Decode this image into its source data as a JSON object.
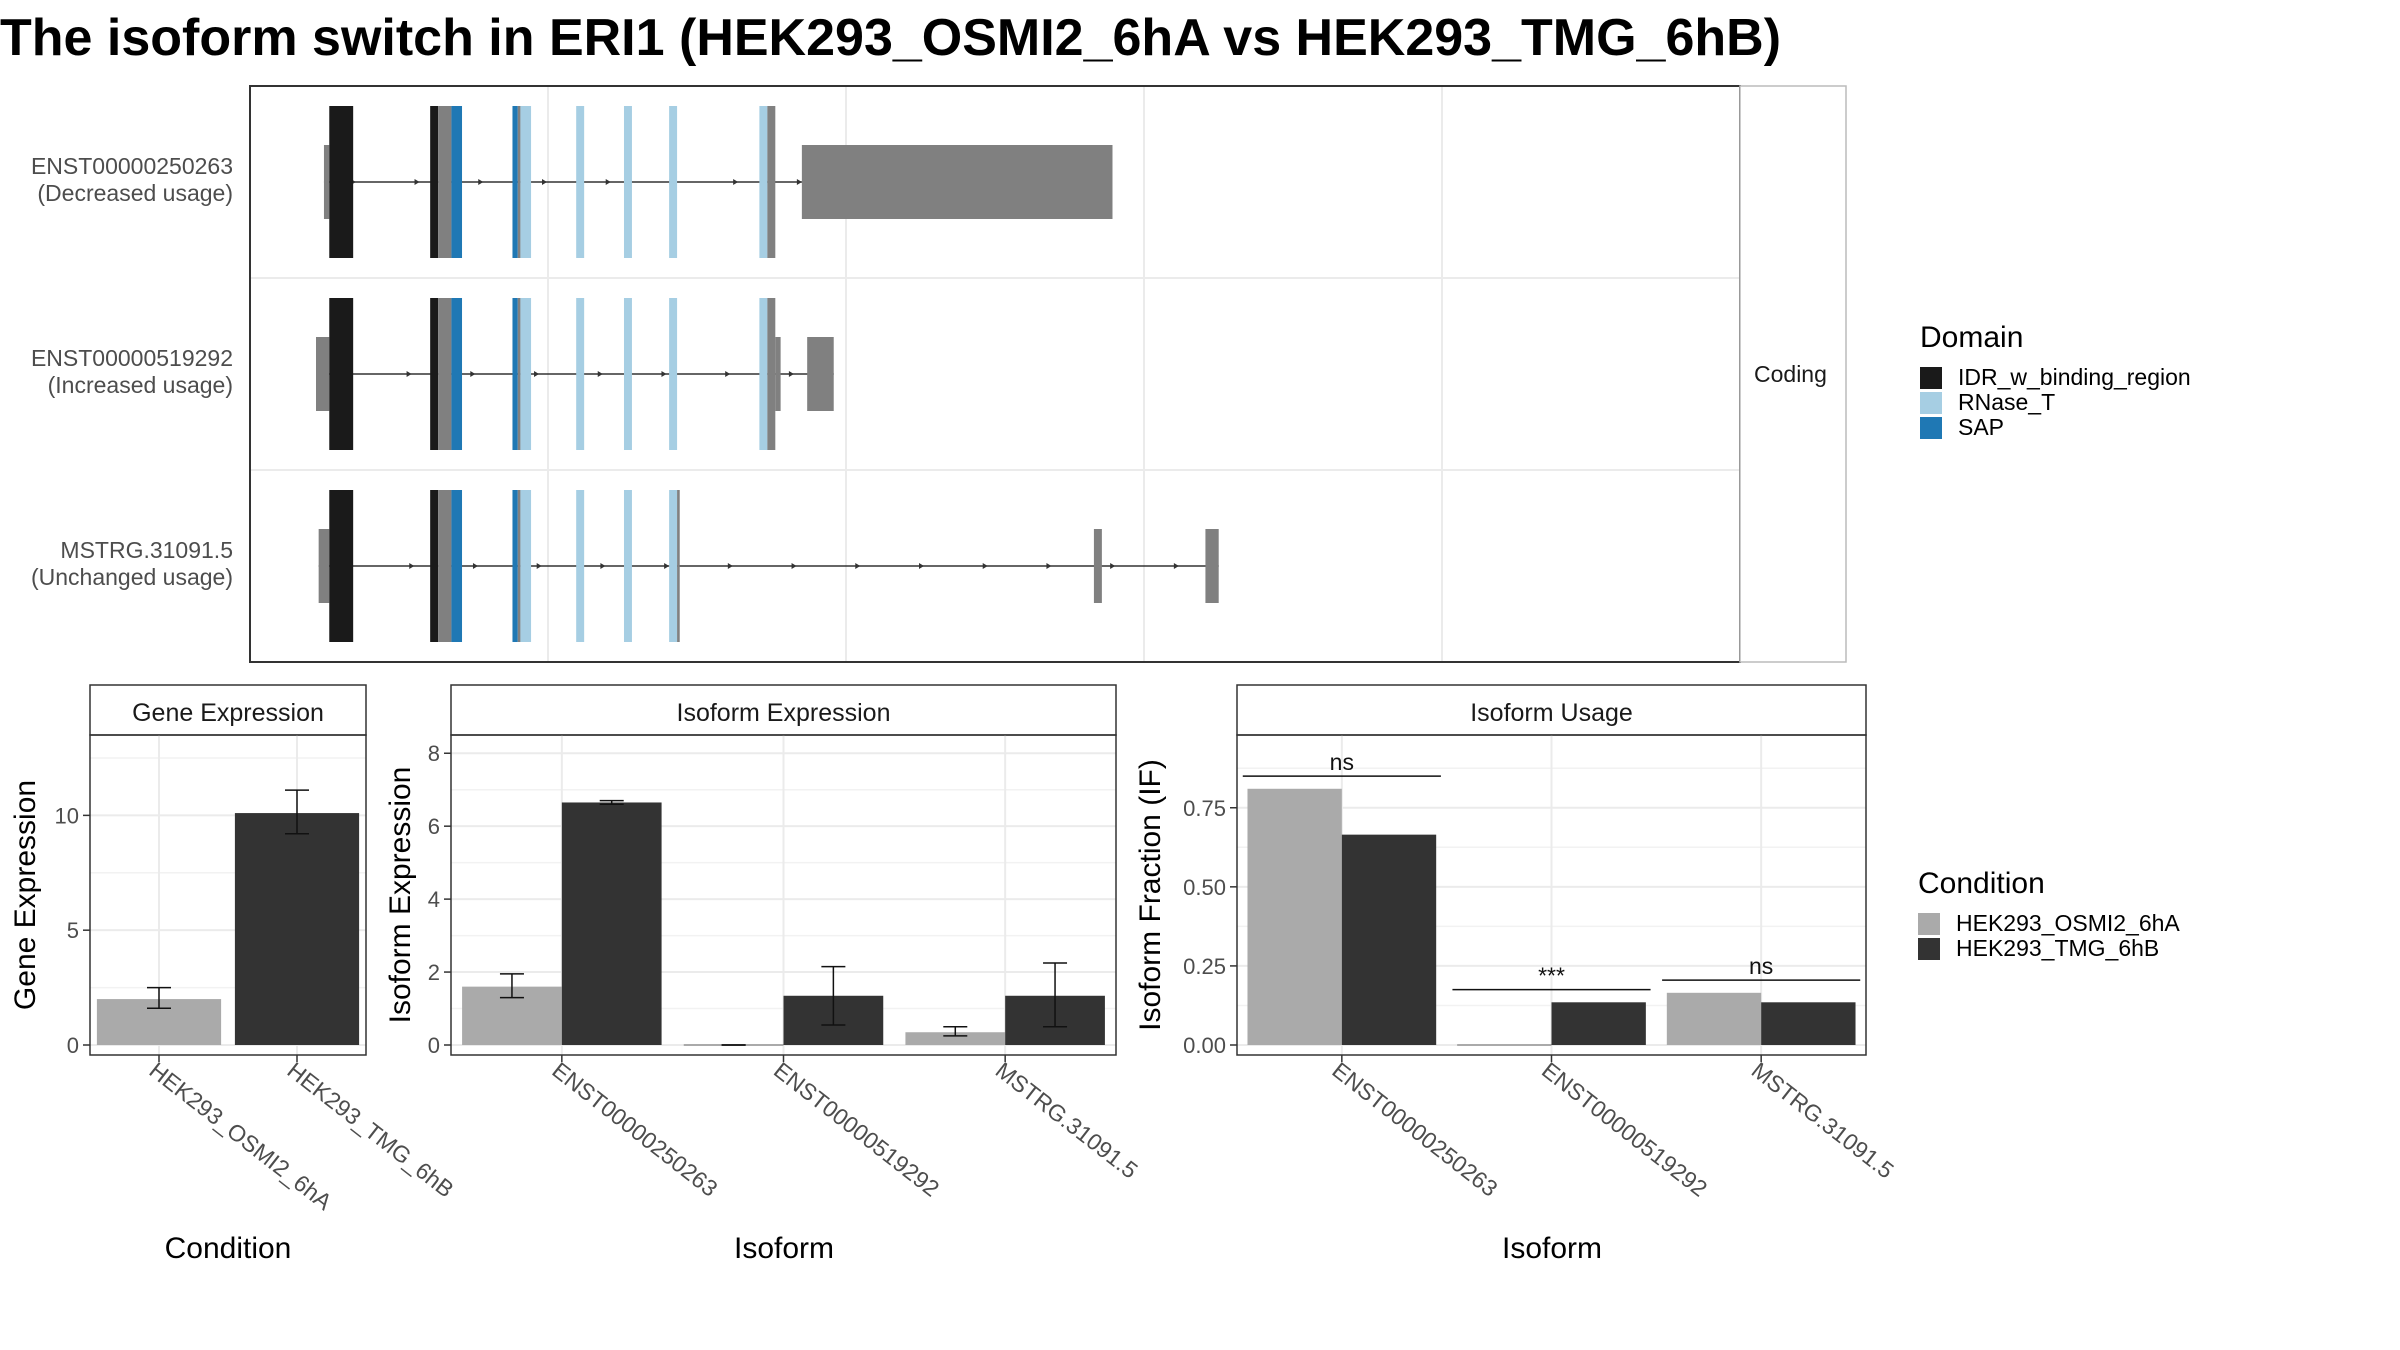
{
  "title": "The isoform switch in ERI1 (HEK293_OSMI2_6hA vs HEK293_TMG_6hB)",
  "colors": {
    "IDR_w_binding_region": "#1a1a1a",
    "RNase_T": "#a6cee3",
    "SAP": "#1f78b4",
    "utr": "#808080",
    "condA": "#aaaaaa",
    "condB": "#333333"
  },
  "structure": {
    "facet_label": "Coding",
    "transcripts": [
      {
        "id": "ENST00000250263",
        "usage": "(Decreased usage)",
        "utr_blocks": [
          [
            3,
            5
          ],
          [
            183,
            300
          ]
        ],
        "domains": [
          {
            "name": "IDR_w_binding_region",
            "x": [
              5,
              14
            ]
          },
          {
            "name": "IDR_w_binding_region",
            "x": [
              43,
              46
            ]
          },
          {
            "name": "utr",
            "x": [
              46,
              51
            ]
          },
          {
            "name": "SAP",
            "x": [
              51,
              55
            ]
          },
          {
            "name": "SAP",
            "x": [
              74,
              76
            ]
          },
          {
            "name": "utr",
            "x": [
              76,
              77
            ]
          },
          {
            "name": "RNase_T",
            "x": [
              77,
              81
            ]
          },
          {
            "name": "RNase_T",
            "x": [
              98,
              101
            ]
          },
          {
            "name": "RNase_T",
            "x": [
              116,
              119
            ]
          },
          {
            "name": "RNase_T",
            "x": [
              133,
              136
            ]
          },
          {
            "name": "RNase_T",
            "x": [
              167,
              170
            ]
          },
          {
            "name": "utr",
            "x": [
              170,
              173
            ]
          }
        ]
      },
      {
        "id": "ENST00000519292",
        "usage": "(Increased usage)",
        "utr_blocks": [
          [
            0,
            5
          ],
          [
            173,
            175
          ],
          [
            185,
            195
          ]
        ],
        "domains": [
          {
            "name": "IDR_w_binding_region",
            "x": [
              5,
              14
            ]
          },
          {
            "name": "IDR_w_binding_region",
            "x": [
              43,
              46
            ]
          },
          {
            "name": "utr",
            "x": [
              46,
              51
            ]
          },
          {
            "name": "SAP",
            "x": [
              51,
              55
            ]
          },
          {
            "name": "SAP",
            "x": [
              74,
              76
            ]
          },
          {
            "name": "utr",
            "x": [
              76,
              77
            ]
          },
          {
            "name": "RNase_T",
            "x": [
              77,
              81
            ]
          },
          {
            "name": "RNase_T",
            "x": [
              98,
              101
            ]
          },
          {
            "name": "RNase_T",
            "x": [
              116,
              119
            ]
          },
          {
            "name": "RNase_T",
            "x": [
              133,
              136
            ]
          },
          {
            "name": "RNase_T",
            "x": [
              167,
              170
            ]
          },
          {
            "name": "utr",
            "x": [
              170,
              173
            ]
          }
        ]
      },
      {
        "id": "MSTRG.31091.5",
        "usage": "(Unchanged usage)",
        "utr_blocks": [
          [
            1,
            5
          ],
          [
            293,
            296
          ],
          [
            335,
            340
          ]
        ],
        "domains": [
          {
            "name": "IDR_w_binding_region",
            "x": [
              5,
              14
            ]
          },
          {
            "name": "IDR_w_binding_region",
            "x": [
              43,
              46
            ]
          },
          {
            "name": "utr",
            "x": [
              46,
              51
            ]
          },
          {
            "name": "SAP",
            "x": [
              51,
              55
            ]
          },
          {
            "name": "SAP",
            "x": [
              74,
              76
            ]
          },
          {
            "name": "utr",
            "x": [
              76,
              77
            ]
          },
          {
            "name": "RNase_T",
            "x": [
              77,
              81
            ]
          },
          {
            "name": "RNase_T",
            "x": [
              98,
              101
            ]
          },
          {
            "name": "RNase_T",
            "x": [
              116,
              119
            ]
          },
          {
            "name": "RNase_T",
            "x": [
              133,
              136
            ]
          },
          {
            "name": "utr",
            "x": [
              136,
              137
            ]
          }
        ]
      }
    ]
  },
  "legend_domain": {
    "title": "Domain",
    "items": [
      "IDR_w_binding_region",
      "RNase_T",
      "SAP"
    ]
  },
  "legend_condition": {
    "title": "Condition",
    "items": [
      "HEK293_OSMI2_6hA",
      "HEK293_TMG_6hB"
    ]
  },
  "chart_data": [
    {
      "type": "bar",
      "title": "Gene Expression",
      "xlabel": "Condition",
      "ylabel": "Gene Expression",
      "ylim": [
        0,
        13.5
      ],
      "yticks": [
        0,
        5,
        10
      ],
      "yticklabels": [
        "0",
        "5",
        "10"
      ],
      "categories": [
        "HEK293_OSMI2_6hA",
        "HEK293_TMG_6hB"
      ],
      "values": [
        2.0,
        10.1
      ],
      "error_low": [
        1.6,
        9.2
      ],
      "error_high": [
        2.5,
        11.1
      ]
    },
    {
      "type": "bar",
      "title": "Isoform Expression",
      "xlabel": "Isoform",
      "ylabel": "Isoform Expression",
      "ylim": [
        0,
        8.5
      ],
      "yticks": [
        0,
        2,
        4,
        6,
        8
      ],
      "yticklabels": [
        "0",
        "2",
        "4",
        "6",
        "8"
      ],
      "categories": [
        "ENST00000250263",
        "ENST00000519292",
        "MSTRG.31091.5"
      ],
      "series": [
        {
          "name": "HEK293_OSMI2_6hA",
          "values": [
            1.6,
            0.0,
            0.35
          ],
          "error_low": [
            1.3,
            0.0,
            0.25
          ],
          "error_high": [
            1.95,
            0.0,
            0.5
          ]
        },
        {
          "name": "HEK293_TMG_6hB",
          "values": [
            6.65,
            1.35,
            1.35
          ],
          "error_low": [
            6.6,
            0.55,
            0.5
          ],
          "error_high": [
            6.7,
            2.15,
            2.25
          ]
        }
      ]
    },
    {
      "type": "bar",
      "title": "Isoform Usage",
      "xlabel": "Isoform",
      "ylabel": "Isoform Fraction (IF)",
      "ylim": [
        0,
        0.98
      ],
      "yticks": [
        0,
        0.25,
        0.5,
        0.75
      ],
      "yticklabels": [
        "0.00",
        "0.25",
        "0.50",
        "0.75"
      ],
      "categories": [
        "ENST00000250263",
        "ENST00000519292",
        "MSTRG.31091.5"
      ],
      "series": [
        {
          "name": "HEK293_OSMI2_6hA",
          "values": [
            0.81,
            0.0,
            0.165
          ]
        },
        {
          "name": "HEK293_TMG_6hB",
          "values": [
            0.665,
            0.135,
            0.135
          ]
        }
      ],
      "significance": [
        {
          "label": "ns",
          "y": 0.85
        },
        {
          "label": "***",
          "y": 0.175
        },
        {
          "label": "ns",
          "y": 0.205
        }
      ]
    }
  ]
}
